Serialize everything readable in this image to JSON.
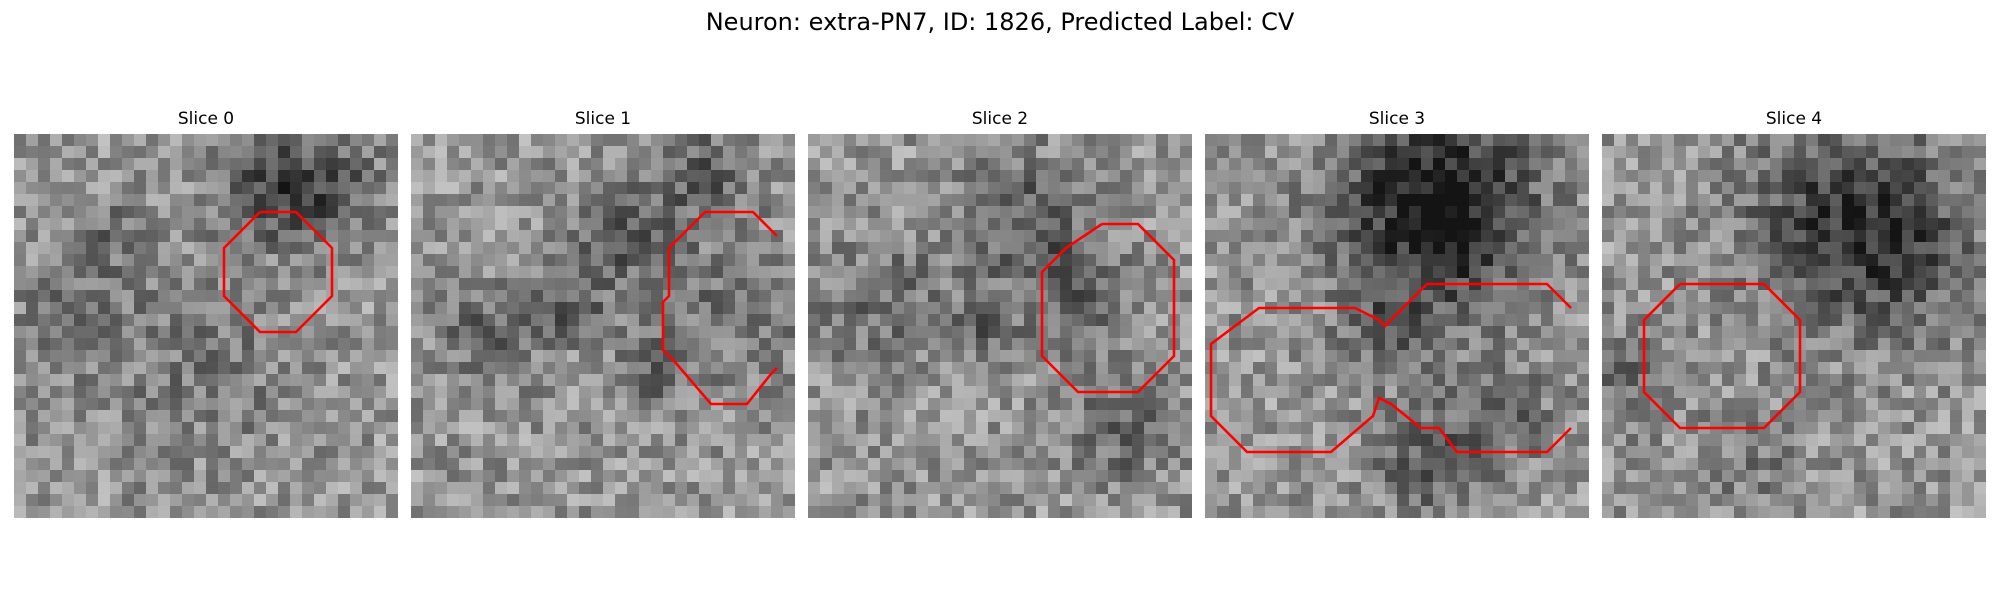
{
  "title": "Neuron: extra-PN7, ID: 1826, Predicted Label: CV",
  "panels": [
    {
      "label": "Slice 0",
      "contour_color": "#ff0000",
      "image": "grayscale-em-patch",
      "contours": [
        [
          [
            20.5,
            6.5
          ],
          [
            23.5,
            6.5
          ],
          [
            26.5,
            9.5
          ],
          [
            26.5,
            13.5
          ],
          [
            23.5,
            16.5
          ],
          [
            20.5,
            16.5
          ],
          [
            17.5,
            13.5
          ],
          [
            17.5,
            9.5
          ],
          [
            20.5,
            6.5
          ]
        ]
      ]
    },
    {
      "label": "Slice 1",
      "contour_color": "#ff0000",
      "image": "grayscale-em-patch",
      "contours": [
        [
          [
            30.5,
            8.5
          ],
          [
            28.5,
            6.5
          ],
          [
            24.5,
            6.5
          ],
          [
            21.5,
            9.5
          ],
          [
            21.5,
            13.5
          ],
          [
            21,
            14
          ],
          [
            21,
            18
          ],
          [
            22,
            19
          ],
          [
            25,
            22.5
          ],
          [
            28,
            22.5
          ],
          [
            30,
            20
          ],
          [
            30.5,
            19.5
          ]
        ]
      ]
    },
    {
      "label": "Slice 2",
      "contour_color": "#ff0000",
      "image": "grayscale-em-patch",
      "contours": [
        [
          [
            24.5,
            7.5
          ],
          [
            27.5,
            7.5
          ],
          [
            30.5,
            10.5
          ],
          [
            30.5,
            18.5
          ],
          [
            27.5,
            21.5
          ],
          [
            22.5,
            21.5
          ],
          [
            19.5,
            18.5
          ],
          [
            19.5,
            11.5
          ],
          [
            21.5,
            9.5
          ],
          [
            24.5,
            7.5
          ]
        ]
      ]
    },
    {
      "label": "Slice 3",
      "contour_color": "#ff0000",
      "image": "grayscale-em-patch",
      "contours": [
        [
          [
            30.5,
            14.5
          ],
          [
            28.5,
            12.5
          ],
          [
            18.5,
            12.5
          ],
          [
            15.5,
            15.5
          ],
          [
            15,
            16
          ],
          [
            14.5,
            15.5
          ],
          [
            12.5,
            14.5
          ],
          [
            4.5,
            14.5
          ],
          [
            0.5,
            17.5
          ],
          [
            0.5,
            23.5
          ],
          [
            3.5,
            26.5
          ],
          [
            10.5,
            26.5
          ],
          [
            14,
            23.5
          ],
          [
            14.5,
            22
          ],
          [
            15.5,
            22.5
          ],
          [
            18,
            24.5
          ],
          [
            19.5,
            24.5
          ],
          [
            21,
            26.5
          ],
          [
            28.5,
            26.5
          ],
          [
            30.5,
            24.5
          ]
        ]
      ]
    },
    {
      "label": "Slice 4",
      "contour_color": "#ff0000",
      "image": "grayscale-em-patch",
      "contours": [
        [
          [
            6.5,
            12.5
          ],
          [
            13.5,
            12.5
          ],
          [
            16.5,
            15.5
          ],
          [
            16.5,
            21.5
          ],
          [
            13.5,
            24.5
          ],
          [
            6.5,
            24.5
          ],
          [
            3.5,
            21.5
          ],
          [
            3.5,
            15.5
          ],
          [
            6.5,
            12.5
          ]
        ]
      ]
    }
  ]
}
